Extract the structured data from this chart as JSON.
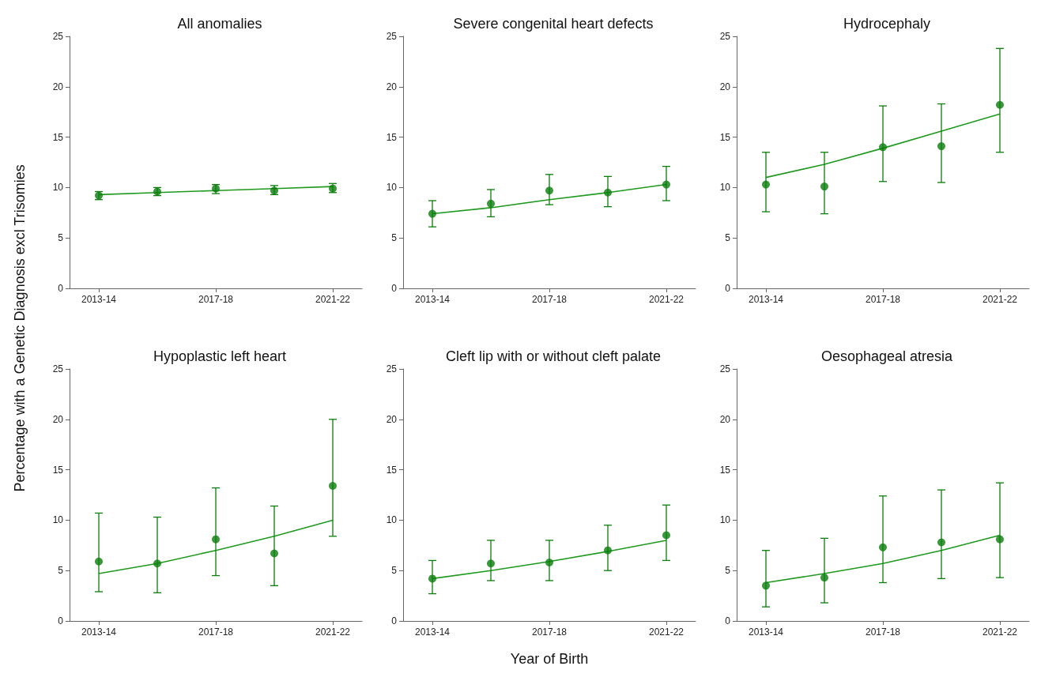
{
  "chart_data": [
    {
      "type": "scatter",
      "title": "All anomalies",
      "ylabel": "Percentage with a Genetic Diagnosis excl Trisomies",
      "categories": [
        "2013-14",
        null,
        "2017-18",
        null,
        "2021-22"
      ],
      "ylim": [
        0,
        25
      ],
      "yticks": [
        0,
        5,
        10,
        15,
        20,
        25
      ],
      "series": [
        {
          "color": "#0a7d0a",
          "marker": "circle",
          "values": [
            9.2,
            9.6,
            9.9,
            9.7,
            9.9
          ],
          "errors": [
            [
              8.8,
              9.6
            ],
            [
              9.2,
              10.0
            ],
            [
              9.4,
              10.3
            ],
            [
              9.3,
              10.2
            ],
            [
              9.5,
              10.4
            ]
          ]
        },
        {
          "type": "line",
          "marker": "none",
          "color": "#1f9a1f",
          "values": [
            9.3,
            9.5,
            9.7,
            9.9,
            10.1
          ]
        }
      ]
    },
    {
      "type": "scatter",
      "title": "Severe congenital heart defects",
      "categories": [
        "2013-14",
        null,
        "2017-18",
        null,
        "2021-22"
      ],
      "ylim": [
        0,
        25
      ],
      "yticks": [
        0,
        5,
        10,
        15,
        20,
        25
      ],
      "series": [
        {
          "color": "#0a7d0a",
          "marker": "circle",
          "values": [
            7.4,
            8.4,
            9.7,
            9.5,
            10.3
          ],
          "errors": [
            [
              6.1,
              8.7
            ],
            [
              7.1,
              9.8
            ],
            [
              8.3,
              11.3
            ],
            [
              8.1,
              11.1
            ],
            [
              8.7,
              12.1
            ]
          ]
        },
        {
          "type": "line",
          "marker": "none",
          "color": "#1f9a1f",
          "values": [
            7.4,
            8.0,
            8.8,
            9.5,
            10.3
          ]
        }
      ]
    },
    {
      "type": "scatter",
      "title": "Hydrocephaly",
      "categories": [
        "2013-14",
        null,
        "2017-18",
        null,
        "2021-22"
      ],
      "ylim": [
        0,
        25
      ],
      "yticks": [
        0,
        5,
        10,
        15,
        20,
        25
      ],
      "series": [
        {
          "color": "#0a7d0a",
          "marker": "circle",
          "values": [
            10.3,
            10.1,
            14.0,
            14.1,
            18.2
          ],
          "errors": [
            [
              7.6,
              13.5
            ],
            [
              7.4,
              13.5
            ],
            [
              10.6,
              18.1
            ],
            [
              10.5,
              18.3
            ],
            [
              13.5,
              23.8
            ]
          ]
        },
        {
          "type": "line",
          "marker": "none",
          "color": "#1f9a1f",
          "values": [
            11.0,
            12.3,
            13.9,
            15.6,
            17.3
          ]
        }
      ]
    },
    {
      "type": "scatter",
      "title": "Hypoplastic left heart",
      "categories": [
        "2013-14",
        null,
        "2017-18",
        null,
        "2021-22"
      ],
      "ylim": [
        0,
        25
      ],
      "yticks": [
        0,
        5,
        10,
        15,
        20,
        25
      ],
      "series": [
        {
          "color": "#0a7d0a",
          "marker": "circle",
          "values": [
            5.9,
            5.7,
            8.1,
            6.7,
            13.4
          ],
          "errors": [
            [
              2.9,
              10.7
            ],
            [
              2.8,
              10.3
            ],
            [
              4.5,
              13.2
            ],
            [
              3.5,
              11.4
            ],
            [
              8.4,
              20.0
            ]
          ]
        },
        {
          "type": "line",
          "marker": "none",
          "color": "#1f9a1f",
          "values": [
            4.7,
            5.7,
            7.0,
            8.4,
            10.0
          ]
        }
      ]
    },
    {
      "type": "scatter",
      "title": "Cleft lip with or without cleft palate",
      "xlabel": "Year of Birth",
      "categories": [
        "2013-14",
        null,
        "2017-18",
        null,
        "2021-22"
      ],
      "ylim": [
        0,
        25
      ],
      "yticks": [
        0,
        5,
        10,
        15,
        20,
        25
      ],
      "series": [
        {
          "color": "#0a7d0a",
          "marker": "circle",
          "values": [
            4.2,
            5.7,
            5.8,
            7.0,
            8.5
          ],
          "errors": [
            [
              2.7,
              6.0
            ],
            [
              4.0,
              8.0
            ],
            [
              4.0,
              8.0
            ],
            [
              5.0,
              9.5
            ],
            [
              6.0,
              11.5
            ]
          ]
        },
        {
          "type": "line",
          "marker": "none",
          "color": "#1f9a1f",
          "values": [
            4.2,
            5.0,
            5.9,
            6.9,
            8.0
          ]
        }
      ]
    },
    {
      "type": "scatter",
      "title": "Oesophageal atresia",
      "categories": [
        "2013-14",
        null,
        "2017-18",
        null,
        "2021-22"
      ],
      "ylim": [
        0,
        25
      ],
      "yticks": [
        0,
        5,
        10,
        15,
        20,
        25
      ],
      "series": [
        {
          "color": "#0a7d0a",
          "marker": "circle",
          "values": [
            3.5,
            4.3,
            7.3,
            7.8,
            8.1
          ],
          "errors": [
            [
              1.4,
              7.0
            ],
            [
              1.8,
              8.2
            ],
            [
              3.8,
              12.4
            ],
            [
              4.2,
              13.0
            ],
            [
              4.3,
              13.7
            ]
          ]
        },
        {
          "type": "line",
          "marker": "none",
          "color": "#1f9a1f",
          "values": [
            3.8,
            4.7,
            5.7,
            7.0,
            8.5
          ]
        }
      ]
    }
  ]
}
